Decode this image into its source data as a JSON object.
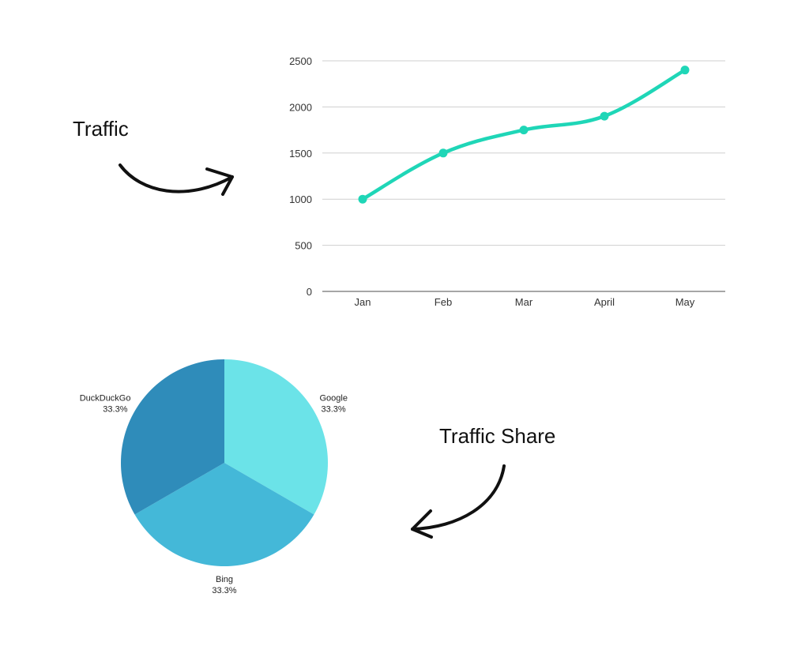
{
  "callouts": {
    "line": "Traffic",
    "pie": "Traffic Share"
  },
  "colors": {
    "line": "#1fd6b7",
    "grid": "#cfcfcf",
    "axis": "#888888",
    "arrow": "#111111"
  },
  "chart_data": [
    {
      "type": "line",
      "title": "",
      "xlabel": "",
      "ylabel": "",
      "categories": [
        "Jan",
        "Feb",
        "Mar",
        "April",
        "May"
      ],
      "series": [
        {
          "values": [
            1000,
            1500,
            1750,
            1900,
            2400
          ]
        }
      ],
      "ylim": [
        0,
        2500
      ],
      "yticks": [
        "0",
        "500",
        "1000",
        "1500",
        "2000",
        "2500"
      ],
      "grid": true,
      "legend": "none",
      "line_color": "#1fd6b7"
    },
    {
      "type": "pie",
      "title": "",
      "slices": [
        {
          "label": "Google",
          "value": 33.3,
          "pct": "33.3%",
          "color": "#6be3e8"
        },
        {
          "label": "Bing",
          "value": 33.3,
          "pct": "33.3%",
          "color": "#44b8d8"
        },
        {
          "label": "DuckDuckGo",
          "value": 33.3,
          "pct": "33.3%",
          "color": "#2f8cba"
        }
      ]
    }
  ]
}
